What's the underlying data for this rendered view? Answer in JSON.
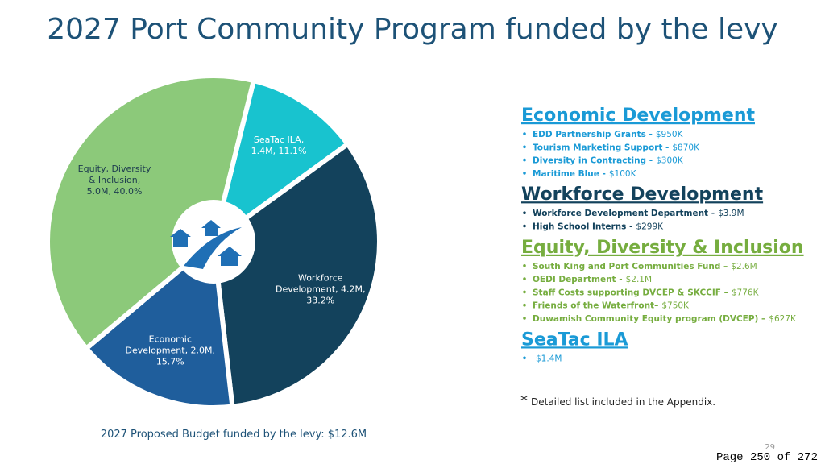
{
  "title": "2027 Port Community Program funded by the levy",
  "chart_data": {
    "type": "pie",
    "note": "2027 Proposed Budget funded by the levy: $12.6M",
    "values": [
      11.1,
      33.2,
      15.7,
      40.0
    ],
    "value_labels": [
      [
        "SeaTac ILA,",
        "1.4M, 11.1%"
      ],
      [
        "Workforce",
        "Development, 4.2M,",
        "33.2%"
      ],
      [
        "Economic",
        "Development, 2.0M,",
        "15.7%"
      ],
      [
        "Equity, Diversity",
        "& Inclusion,",
        "5.0M, 40.0%"
      ]
    ],
    "colors": [
      "#18c3cf",
      "#13425c",
      "#1f5e9c",
      "#8cc97a"
    ]
  },
  "sections": [
    {
      "heading": "Economic Development",
      "color": "#1a9ad6",
      "items": [
        {
          "name": "EDD Partnership Grants -",
          "amount": "$950K"
        },
        {
          "name": "Tourism Marketing Support -",
          "amount": "$870K"
        },
        {
          "name": "Diversity in Contracting -",
          "amount": "$300K"
        },
        {
          "name": "Maritime Blue -",
          "amount": "$100K"
        }
      ]
    },
    {
      "heading": "Workforce Development",
      "color": "#13425c",
      "items": [
        {
          "name": "Workforce Development Department -",
          "amount": "$3.9M"
        },
        {
          "name": "High School Interns -",
          "amount": "$299K"
        }
      ]
    },
    {
      "heading": "Equity, Diversity & Inclusion",
      "color": "#76ad3f",
      "items": [
        {
          "name": "South King and Port Communities Fund –",
          "amount": "$2.6M"
        },
        {
          "name": "OEDI Department -",
          "amount": "$2.1M"
        },
        {
          "name": "Staff Costs supporting DVCEP & SKCCIF –",
          "amount": "$776K"
        },
        {
          "name": "Friends of the Waterfront–",
          "amount": "$750K"
        },
        {
          "name": "Duwamish Community Equity program (DVCEP) –",
          "amount": "$627K"
        }
      ]
    },
    {
      "heading": "SeaTac ILA",
      "color": "#1a9ad6",
      "items": [
        {
          "name": "",
          "amount": "$1.4M"
        }
      ]
    }
  ],
  "footnote": {
    "mark": "*",
    "text": "Detailed list included in the Appendix."
  },
  "slide_number": "29",
  "page_label": "Page 250 of 272"
}
